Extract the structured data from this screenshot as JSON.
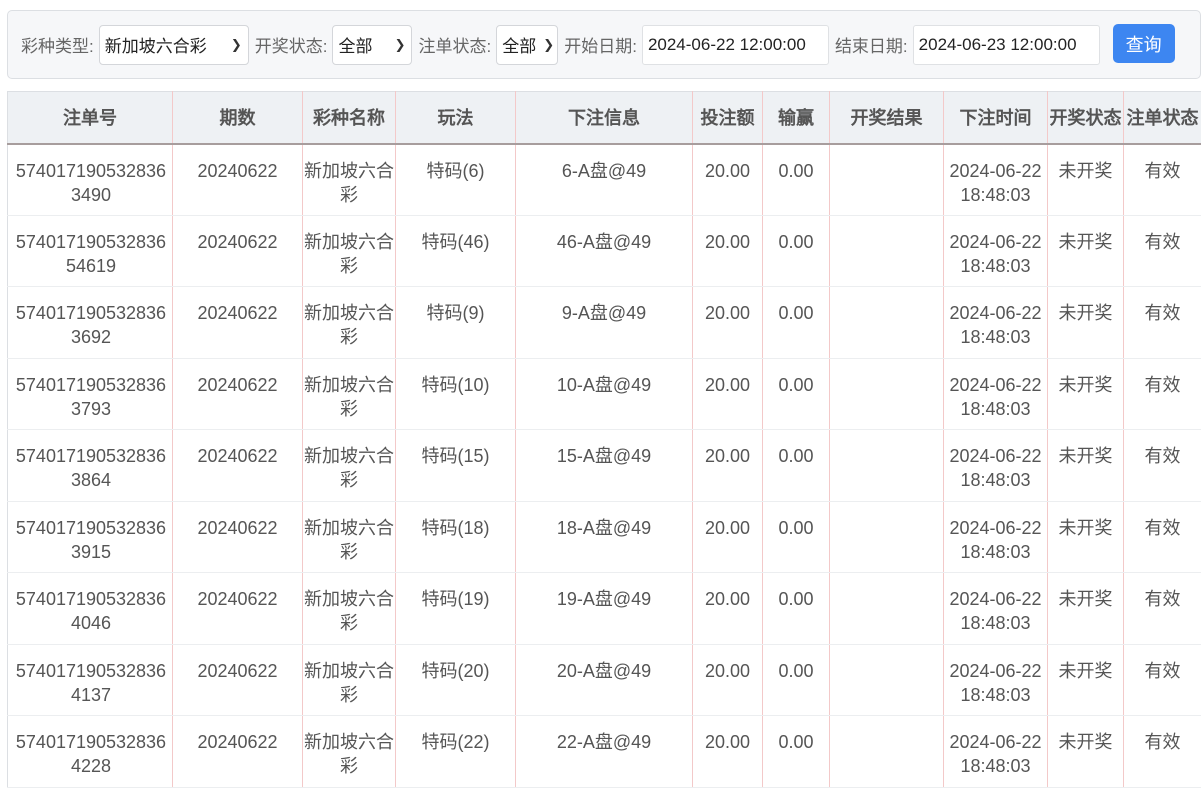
{
  "filters": {
    "lottery_type_label": "彩种类型:",
    "lottery_type_value": "新加坡六合彩",
    "draw_status_label": "开奖状态:",
    "draw_status_value": "全部",
    "bet_status_label": "注单状态:",
    "bet_status_value": "全部",
    "start_date_label": "开始日期:",
    "start_date_value": "2024-06-22 12:00:00",
    "end_date_label": "结束日期:",
    "end_date_value": "2024-06-23 12:00:00",
    "query_button": "查询"
  },
  "table": {
    "headers": [
      "注单号",
      "期数",
      "彩种名称",
      "玩法",
      "下注信息",
      "投注额",
      "输赢",
      "开奖结果",
      "下注时间",
      "开奖状态",
      "注单状态"
    ],
    "rows": [
      [
        "5740171905328363490",
        "20240622",
        "新加坡六合彩",
        "特码(6)",
        "6-A盘@49",
        "20.00",
        "0.00",
        "",
        "2024-06-22 18:48:03",
        "未开奖",
        "有效"
      ],
      [
        "57401719053283654619",
        "20240622",
        "新加坡六合彩",
        "特码(46)",
        "46-A盘@49",
        "20.00",
        "0.00",
        "",
        "2024-06-22 18:48:03",
        "未开奖",
        "有效"
      ],
      [
        "5740171905328363692",
        "20240622",
        "新加坡六合彩",
        "特码(9)",
        "9-A盘@49",
        "20.00",
        "0.00",
        "",
        "2024-06-22 18:48:03",
        "未开奖",
        "有效"
      ],
      [
        "5740171905328363793",
        "20240622",
        "新加坡六合彩",
        "特码(10)",
        "10-A盘@49",
        "20.00",
        "0.00",
        "",
        "2024-06-22 18:48:03",
        "未开奖",
        "有效"
      ],
      [
        "5740171905328363864",
        "20240622",
        "新加坡六合彩",
        "特码(15)",
        "15-A盘@49",
        "20.00",
        "0.00",
        "",
        "2024-06-22 18:48:03",
        "未开奖",
        "有效"
      ],
      [
        "5740171905328363915",
        "20240622",
        "新加坡六合彩",
        "特码(18)",
        "18-A盘@49",
        "20.00",
        "0.00",
        "",
        "2024-06-22 18:48:03",
        "未开奖",
        "有效"
      ],
      [
        "5740171905328364046",
        "20240622",
        "新加坡六合彩",
        "特码(19)",
        "19-A盘@49",
        "20.00",
        "0.00",
        "",
        "2024-06-22 18:48:03",
        "未开奖",
        "有效"
      ],
      [
        "5740171905328364137",
        "20240622",
        "新加坡六合彩",
        "特码(20)",
        "20-A盘@49",
        "20.00",
        "0.00",
        "",
        "2024-06-22 18:48:03",
        "未开奖",
        "有效"
      ],
      [
        "5740171905328364228",
        "20240622",
        "新加坡六合彩",
        "特码(22)",
        "22-A盘@49",
        "20.00",
        "0.00",
        "",
        "2024-06-22 18:48:03",
        "未开奖",
        "有效"
      ]
    ]
  },
  "colors": {
    "accent": "#3d86f1"
  }
}
